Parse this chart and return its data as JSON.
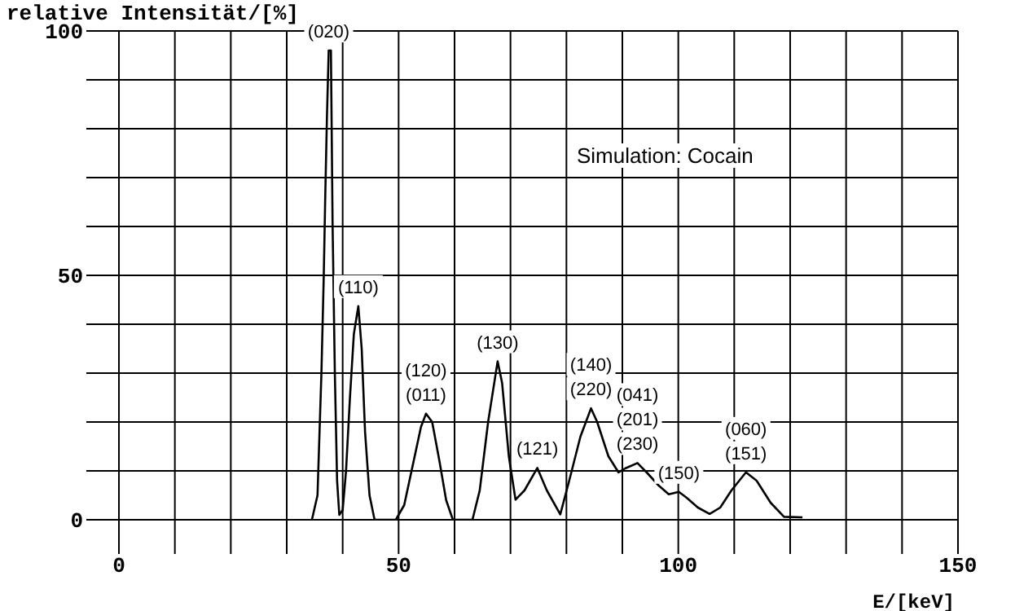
{
  "chart_data": {
    "type": "line",
    "xlabel": "E/[keV]",
    "ylabel": "relative Intensität/[%]",
    "xlim": [
      0,
      150
    ],
    "ylim": [
      0,
      100
    ],
    "xticks": [
      0,
      {
        "value": 10,
        "label": null
      },
      {
        "value": 20,
        "label": null
      },
      {
        "value": 30,
        "label": null
      },
      {
        "value": 40,
        "label": null
      },
      50,
      {
        "value": 60,
        "label": null
      },
      {
        "value": 70,
        "label": null
      },
      {
        "value": 80,
        "label": null
      },
      {
        "value": 90,
        "label": null
      },
      100,
      {
        "value": 110,
        "label": null
      },
      {
        "value": 120,
        "label": null
      },
      {
        "value": 130,
        "label": null
      },
      {
        "value": 140,
        "label": null
      },
      150
    ],
    "yticks": [
      0,
      {
        "value": 10,
        "label": null
      },
      {
        "value": 20,
        "label": null
      },
      {
        "value": 30,
        "label": null
      },
      {
        "value": 40,
        "label": null
      },
      50,
      {
        "value": 60,
        "label": null
      },
      {
        "value": 70,
        "label": null
      },
      {
        "value": 80,
        "label": null
      },
      {
        "value": 90,
        "label": null
      },
      100
    ],
    "grid": true,
    "marker": "none",
    "line_style": "solid",
    "series": [
      {
        "color": "#000000",
        "x": [
          34.5,
          35.5,
          36.2,
          36.6,
          36.9,
          37.2,
          37.5,
          37.9,
          38.2,
          38.6,
          39.0,
          39.4,
          40.0,
          40.6,
          41.3,
          42.0,
          42.8,
          43.4,
          44.0,
          44.8,
          45.7,
          49.5,
          51,
          52.5,
          54,
          54.9,
          56,
          57.3,
          58.5,
          59.7,
          63.2,
          64.5,
          66,
          67.7,
          68.5,
          69.7,
          70.9,
          72.5,
          74.8,
          76.5,
          78.9,
          80.5,
          82.5,
          84.4,
          85.5,
          87.5,
          89.3,
          90.5,
          92.7,
          94.5,
          96.5,
          98.3,
          100.1,
          101.5,
          103.5,
          105.6,
          107.5,
          109.5,
          112.1,
          114,
          116.5,
          118.9,
          122.2
        ],
        "values": [
          0,
          5,
          30,
          49,
          67,
          83,
          96,
          96,
          60,
          30,
          8,
          1,
          2,
          10,
          25,
          38,
          43.7,
          35,
          18,
          5,
          0,
          0,
          3,
          11,
          19,
          21.7,
          20,
          12,
          4,
          0,
          0,
          6,
          20,
          32.4,
          28,
          13,
          4.1,
          6,
          10.6,
          6,
          1.1,
          8,
          17,
          22.8,
          20,
          13,
          9.7,
          10.5,
          11.6,
          9.5,
          7,
          5.2,
          5.7,
          4.5,
          2.5,
          1.2,
          2.5,
          6,
          9.7,
          8,
          3.5,
          0.6,
          0.5
        ]
      }
    ],
    "annotations": [
      {
        "text": "(020)",
        "x": 37.5,
        "y": 96
      },
      {
        "text": "(110)",
        "x": 42.8,
        "y": 43.7
      },
      {
        "text": "(120)\n(011)",
        "x": 54.9,
        "y": 21.7
      },
      {
        "text": "(130)",
        "x": 67.7,
        "y": 32.4
      },
      {
        "text": "(121)",
        "x": 74.8,
        "y": 10.6
      },
      {
        "text": "(140)\n(220)",
        "x": 84.4,
        "y": 22.8
      },
      {
        "text": "(041)\n(201)\n(230)",
        "x": 92.7,
        "y": 11.6
      },
      {
        "text": "(150)",
        "x": 100.1,
        "y": 5.7
      },
      {
        "text": "(060)\n(151)",
        "x": 112.1,
        "y": 9.7
      },
      "Simulation: Cocain"
    ]
  }
}
